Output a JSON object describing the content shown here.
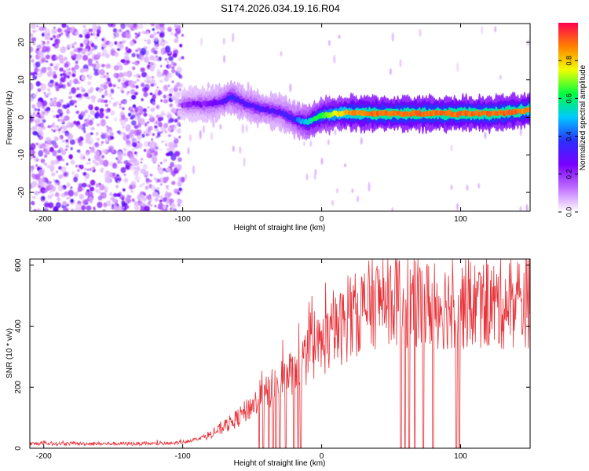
{
  "title": "S174.2026.034.19.16.R04",
  "colors": {
    "snr_line": "#e8333a",
    "colormap": [
      "#ffffff",
      "#c070ff",
      "#7a00ff",
      "#2a30ff",
      "#00c8ff",
      "#00ff40",
      "#f0ff00",
      "#ff8000",
      "#ff0050"
    ]
  },
  "chart_data": [
    {
      "type": "heatmap",
      "title": "S174.2026.034.19.16.R04",
      "xlabel": "Height of straight line (km)",
      "ylabel": "Frequency (Hz)",
      "xlim": [
        -210,
        150
      ],
      "ylim": [
        -25,
        25
      ],
      "xticks": [
        -200,
        -100,
        0,
        100
      ],
      "yticks": [
        -20,
        -10,
        0,
        10,
        20
      ],
      "colorbar": {
        "label": "Normalized spectral amplitude",
        "range": [
          0,
          1
        ],
        "ticks": [
          "0.0",
          "0.2",
          "0.4",
          "0.6",
          "0.8"
        ]
      },
      "signal_track": {
        "description_points_x": [
          -100,
          -80,
          -70,
          -65,
          -60,
          -50,
          -40,
          -30,
          -20,
          -15,
          -10,
          -5,
          0,
          10,
          20,
          40,
          60,
          80,
          100,
          120,
          140,
          150
        ],
        "frequency_hz": [
          3.5,
          3.5,
          4.5,
          5.5,
          4.5,
          3.0,
          2.0,
          1.5,
          -0.5,
          -1.0,
          -1.5,
          -0.5,
          0.5,
          1.0,
          1.2,
          1.0,
          1.0,
          1.0,
          1.0,
          1.0,
          1.5,
          2.0
        ],
        "amplitude": [
          0.2,
          0.25,
          0.3,
          0.35,
          0.3,
          0.3,
          0.3,
          0.3,
          0.35,
          0.45,
          0.55,
          0.6,
          0.65,
          0.75,
          0.85,
          0.9,
          0.9,
          0.9,
          0.9,
          0.9,
          0.9,
          0.85
        ]
      },
      "noise_region_x": [
        -210,
        -100
      ]
    },
    {
      "type": "line",
      "xlabel": "Height of straight line (km)",
      "ylabel": "SNR (10 * v/v)",
      "xlim": [
        -210,
        150
      ],
      "ylim": [
        0,
        620
      ],
      "xticks": [
        -200,
        -100,
        0,
        100
      ],
      "yticks": [
        0,
        200,
        400,
        600
      ],
      "series": [
        {
          "name": "SNR",
          "trend_x": [
            -210,
            -110,
            -100,
            -90,
            -80,
            -70,
            -60,
            -50,
            -40,
            -30,
            -20,
            -10,
            0,
            10,
            20,
            30,
            40,
            50,
            60,
            70,
            80,
            90,
            100,
            110,
            120,
            130,
            140,
            150
          ],
          "trend_y": [
            15,
            15,
            20,
            30,
            45,
            70,
            100,
            140,
            180,
            220,
            260,
            300,
            340,
            380,
            420,
            460,
            480,
            490,
            480,
            470,
            470,
            470,
            470,
            470,
            470,
            470,
            480,
            480
          ],
          "dropouts_x": [
            -45,
            -42,
            -38,
            -35,
            -33,
            -30,
            -26,
            -20,
            -17,
            -15,
            57,
            60,
            63,
            67,
            73,
            80,
            97,
            99
          ]
        }
      ]
    }
  ]
}
